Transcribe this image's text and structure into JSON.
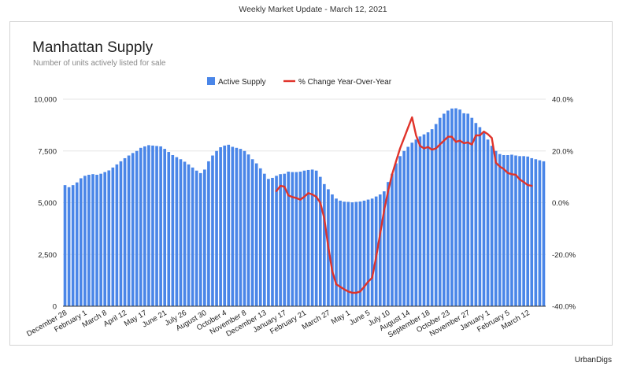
{
  "header": {
    "text": "Weekly Market Update - March 12, 2021"
  },
  "footer": {
    "brand": "UrbanDigs"
  },
  "colors": {
    "bars": "#4a86e8",
    "line": "#e0332a",
    "grid": "#e6e6e6"
  },
  "chart_data": {
    "type": "bar",
    "title": "Manhattan Supply",
    "subtitle": "Number of units actively listed for sale",
    "legend_position": "top-center",
    "grid": true,
    "x_tick_labels": [
      "December 28",
      "February 1",
      "March 8",
      "April 12",
      "May 17",
      "June 21",
      "July 26",
      "August 30",
      "October 4",
      "November 8",
      "December 13",
      "January 17",
      "February 21",
      "March 27",
      "May 1",
      "June 5",
      "July 10",
      "August 14",
      "September 18",
      "October 23",
      "November 27",
      "January 1",
      "February 5",
      "March 12"
    ],
    "y_left": {
      "ticks": [
        "0",
        "2,500",
        "5,000",
        "7,500",
        "10,000"
      ],
      "ylim": [
        0,
        10000
      ]
    },
    "y_right": {
      "ticks": [
        "-40.0%",
        "-20.0%",
        "0.0%",
        "20.0%",
        "40.0%"
      ],
      "ylim": [
        -40,
        40
      ]
    },
    "series": [
      {
        "name": "Active Supply",
        "type": "bar",
        "values": [
          5850,
          5750,
          5850,
          5980,
          6180,
          6300,
          6350,
          6380,
          6350,
          6400,
          6480,
          6560,
          6700,
          6850,
          7000,
          7150,
          7280,
          7400,
          7500,
          7650,
          7720,
          7780,
          7760,
          7740,
          7720,
          7600,
          7450,
          7300,
          7200,
          7100,
          6980,
          6850,
          6700,
          6550,
          6430,
          6600,
          7000,
          7280,
          7500,
          7680,
          7760,
          7800,
          7700,
          7650,
          7600,
          7500,
          7330,
          7100,
          6900,
          6660,
          6400,
          6150,
          6200,
          6300,
          6380,
          6400,
          6500,
          6480,
          6480,
          6500,
          6550,
          6580,
          6600,
          6550,
          6250,
          5900,
          5650,
          5400,
          5200,
          5100,
          5050,
          5040,
          5020,
          5040,
          5060,
          5100,
          5150,
          5200,
          5300,
          5400,
          5550,
          6000,
          6400,
          6900,
          7250,
          7500,
          7700,
          7900,
          8050,
          8200,
          8300,
          8400,
          8550,
          8800,
          9100,
          9300,
          9450,
          9550,
          9560,
          9500,
          9320,
          9300,
          9100,
          8850,
          8650,
          8400,
          8050,
          7750,
          7500,
          7350,
          7300,
          7300,
          7320,
          7280,
          7250,
          7250,
          7230,
          7150,
          7100,
          7050,
          7000
        ]
      },
      {
        "name": "% Change Year-Over-Year",
        "type": "line",
        "axis": "right",
        "start_index": 53,
        "values": [
          4.5,
          6.5,
          6.2,
          2.8,
          2.2,
          1.8,
          1.2,
          2.3,
          3.7,
          3.2,
          2.3,
          0,
          -6,
          -17,
          -26.5,
          -31.5,
          -32.5,
          -33.5,
          -34.3,
          -34.8,
          -34.8,
          -34.3,
          -32.5,
          -30.5,
          -29,
          -21,
          -12,
          -3,
          4.5,
          11,
          16,
          21,
          25,
          29,
          33,
          26,
          22,
          21,
          21.5,
          20.5,
          21,
          22.5,
          24,
          25.5,
          25.5,
          23.5,
          24,
          23,
          23.3,
          22.5,
          26,
          26,
          27.5,
          26.5,
          25,
          15.5,
          14,
          13,
          11.5,
          11,
          10.8,
          9,
          8,
          6.8,
          6.5
        ]
      }
    ]
  }
}
